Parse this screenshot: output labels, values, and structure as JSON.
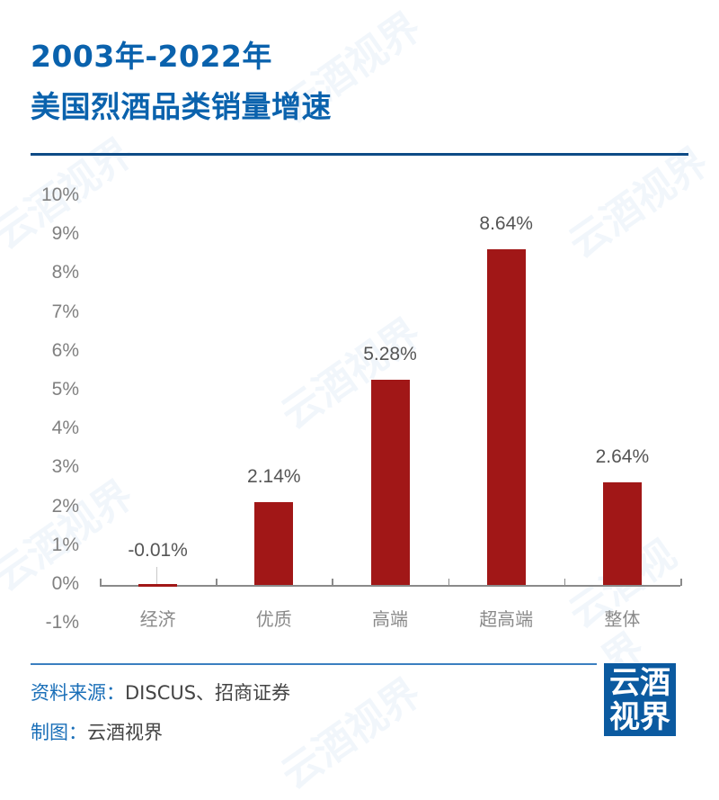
{
  "header": {
    "title_line1": "2003年-2022年",
    "title_line2": "美国烈酒品类销量增速"
  },
  "chart_data": {
    "type": "bar",
    "title": "2003年-2022年 美国烈酒品类销量增速",
    "categories": [
      "经济",
      "优质",
      "高端",
      "超高端",
      "整体"
    ],
    "values": [
      -0.01,
      2.14,
      5.28,
      8.64,
      2.64
    ],
    "value_labels": [
      "-0.01%",
      "2.14%",
      "5.28%",
      "8.64%",
      "2.64%"
    ],
    "unit": "%",
    "xlabel": "",
    "ylabel": "",
    "ylim": [
      -1,
      10
    ],
    "yticks": [
      "10%",
      "9%",
      "8%",
      "7%",
      "6%",
      "5%",
      "4%",
      "3%",
      "2%",
      "1%",
      "0%",
      "-1%"
    ],
    "grid": false,
    "legend": null,
    "bar_color": "#a11717"
  },
  "footer": {
    "source_key": "资料来源：",
    "source_val": "DISCUS、招商证券",
    "maker_key": "制图：",
    "maker_val": "云酒视界",
    "logo_line1": "云酒",
    "logo_line2": "视界"
  },
  "watermark": "云酒视界",
  "colors": {
    "title": "#0a62ad",
    "rule": "#0e4b86",
    "bar": "#a11717",
    "logo_bg": "#0b5aa0"
  }
}
